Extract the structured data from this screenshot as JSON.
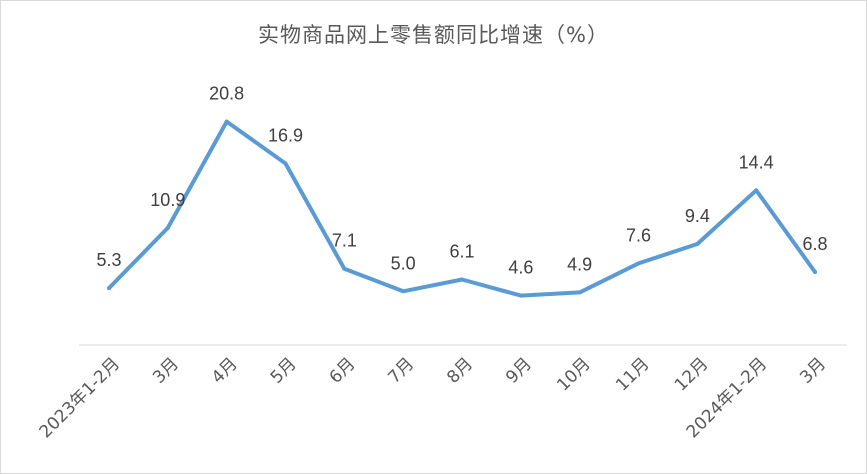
{
  "chart_data": {
    "type": "line",
    "title": "实物商品网上零售额同比增速（%）",
    "xlabel": "",
    "ylabel": "",
    "categories": [
      "2023年1-2月",
      "3月",
      "4月",
      "5月",
      "6月",
      "7月",
      "8月",
      "9月",
      "10月",
      "11月",
      "12月",
      "2024年1-2月",
      "3月"
    ],
    "series": [
      {
        "values": [
          5.3,
          10.9,
          20.8,
          16.9,
          7.1,
          5.0,
          6.1,
          4.6,
          4.9,
          7.6,
          9.4,
          14.4,
          6.8
        ]
      }
    ],
    "data_labels": [
      "5.3",
      "10.9",
      "20.8",
      "16.9",
      "7.1",
      "5.0",
      "6.1",
      "4.6",
      "4.9",
      "7.6",
      "9.4",
      "14.4",
      "6.8"
    ],
    "ylim": [
      0,
      25
    ],
    "grid": false,
    "legend": "none",
    "line_color": "#5b9bd5",
    "axis_color": "#d9d9d9",
    "text_color": "#595959"
  }
}
